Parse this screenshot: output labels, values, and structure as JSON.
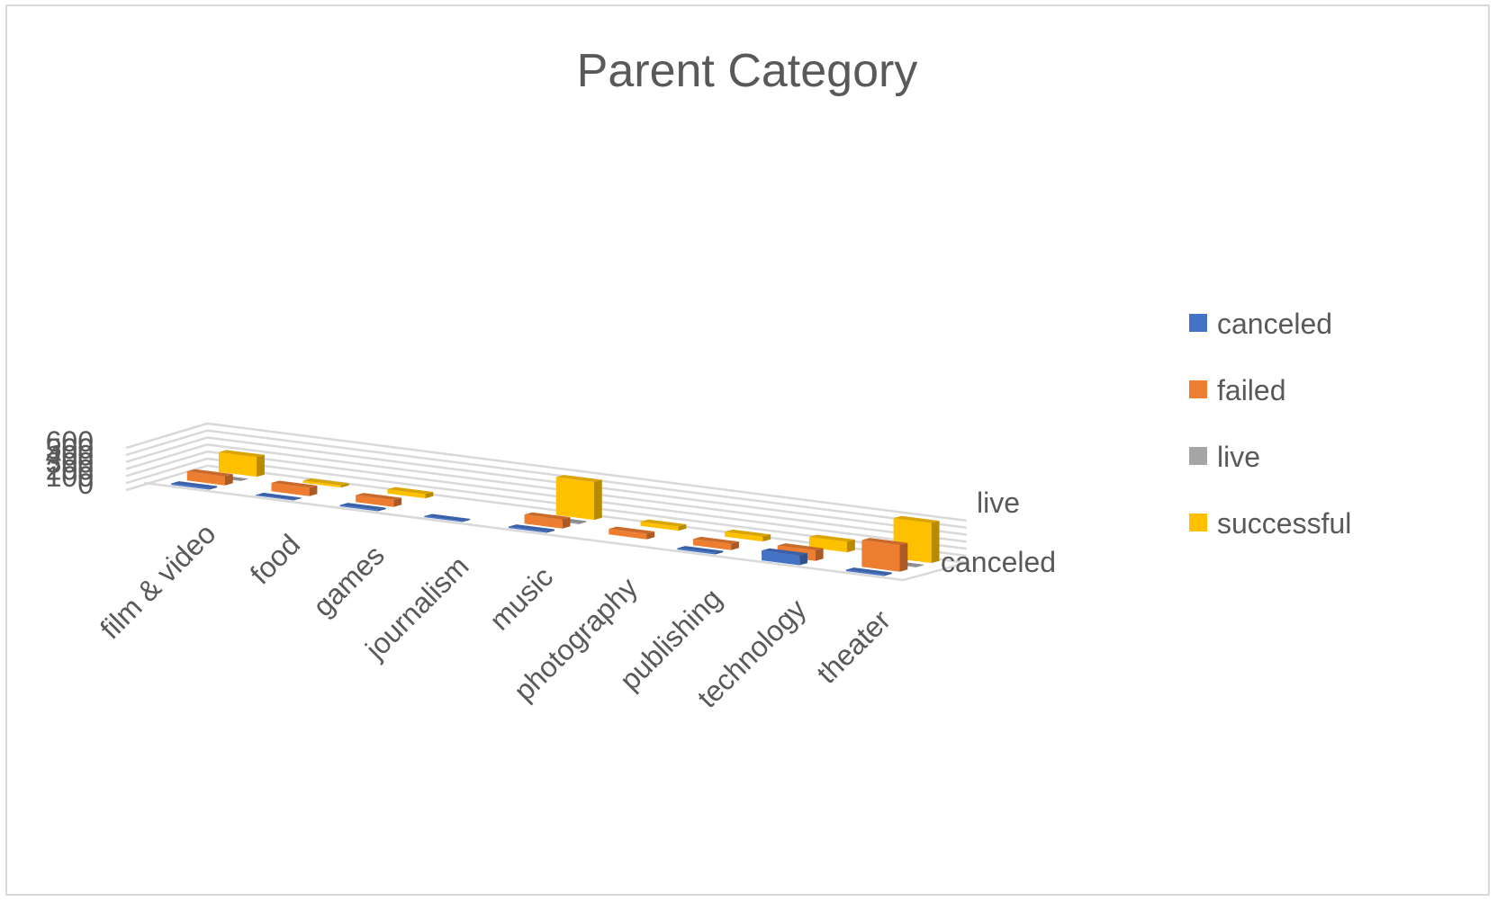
{
  "chart_data": {
    "type": "bar",
    "title": "Parent Category",
    "categories": [
      "film & video",
      "food",
      "games",
      "journalism",
      "music",
      "photography",
      "publishing",
      "technology",
      "theater"
    ],
    "depth_labels": [
      "live",
      "canceled"
    ],
    "ylim": [
      0,
      600
    ],
    "yticks": [
      "0",
      "100",
      "200",
      "300",
      "400",
      "500",
      "600"
    ],
    "grid": true,
    "legend_position": "right",
    "series": [
      {
        "name": "canceled",
        "color": "#4472c4",
        "values": [
          20,
          10,
          20,
          15,
          20,
          0,
          20,
          140,
          20
        ]
      },
      {
        "name": "failed",
        "color": "#ed7d31",
        "values": [
          130,
          120,
          100,
          0,
          130,
          80,
          90,
          150,
          380
        ]
      },
      {
        "name": "live",
        "color": "#a5a5a5",
        "values": [
          2,
          0,
          0,
          0,
          15,
          0,
          0,
          0,
          10
        ]
      },
      {
        "name": "successful",
        "color": "#ffc000",
        "values": [
          280,
          30,
          60,
          0,
          540,
          60,
          70,
          150,
          570
        ]
      }
    ]
  }
}
